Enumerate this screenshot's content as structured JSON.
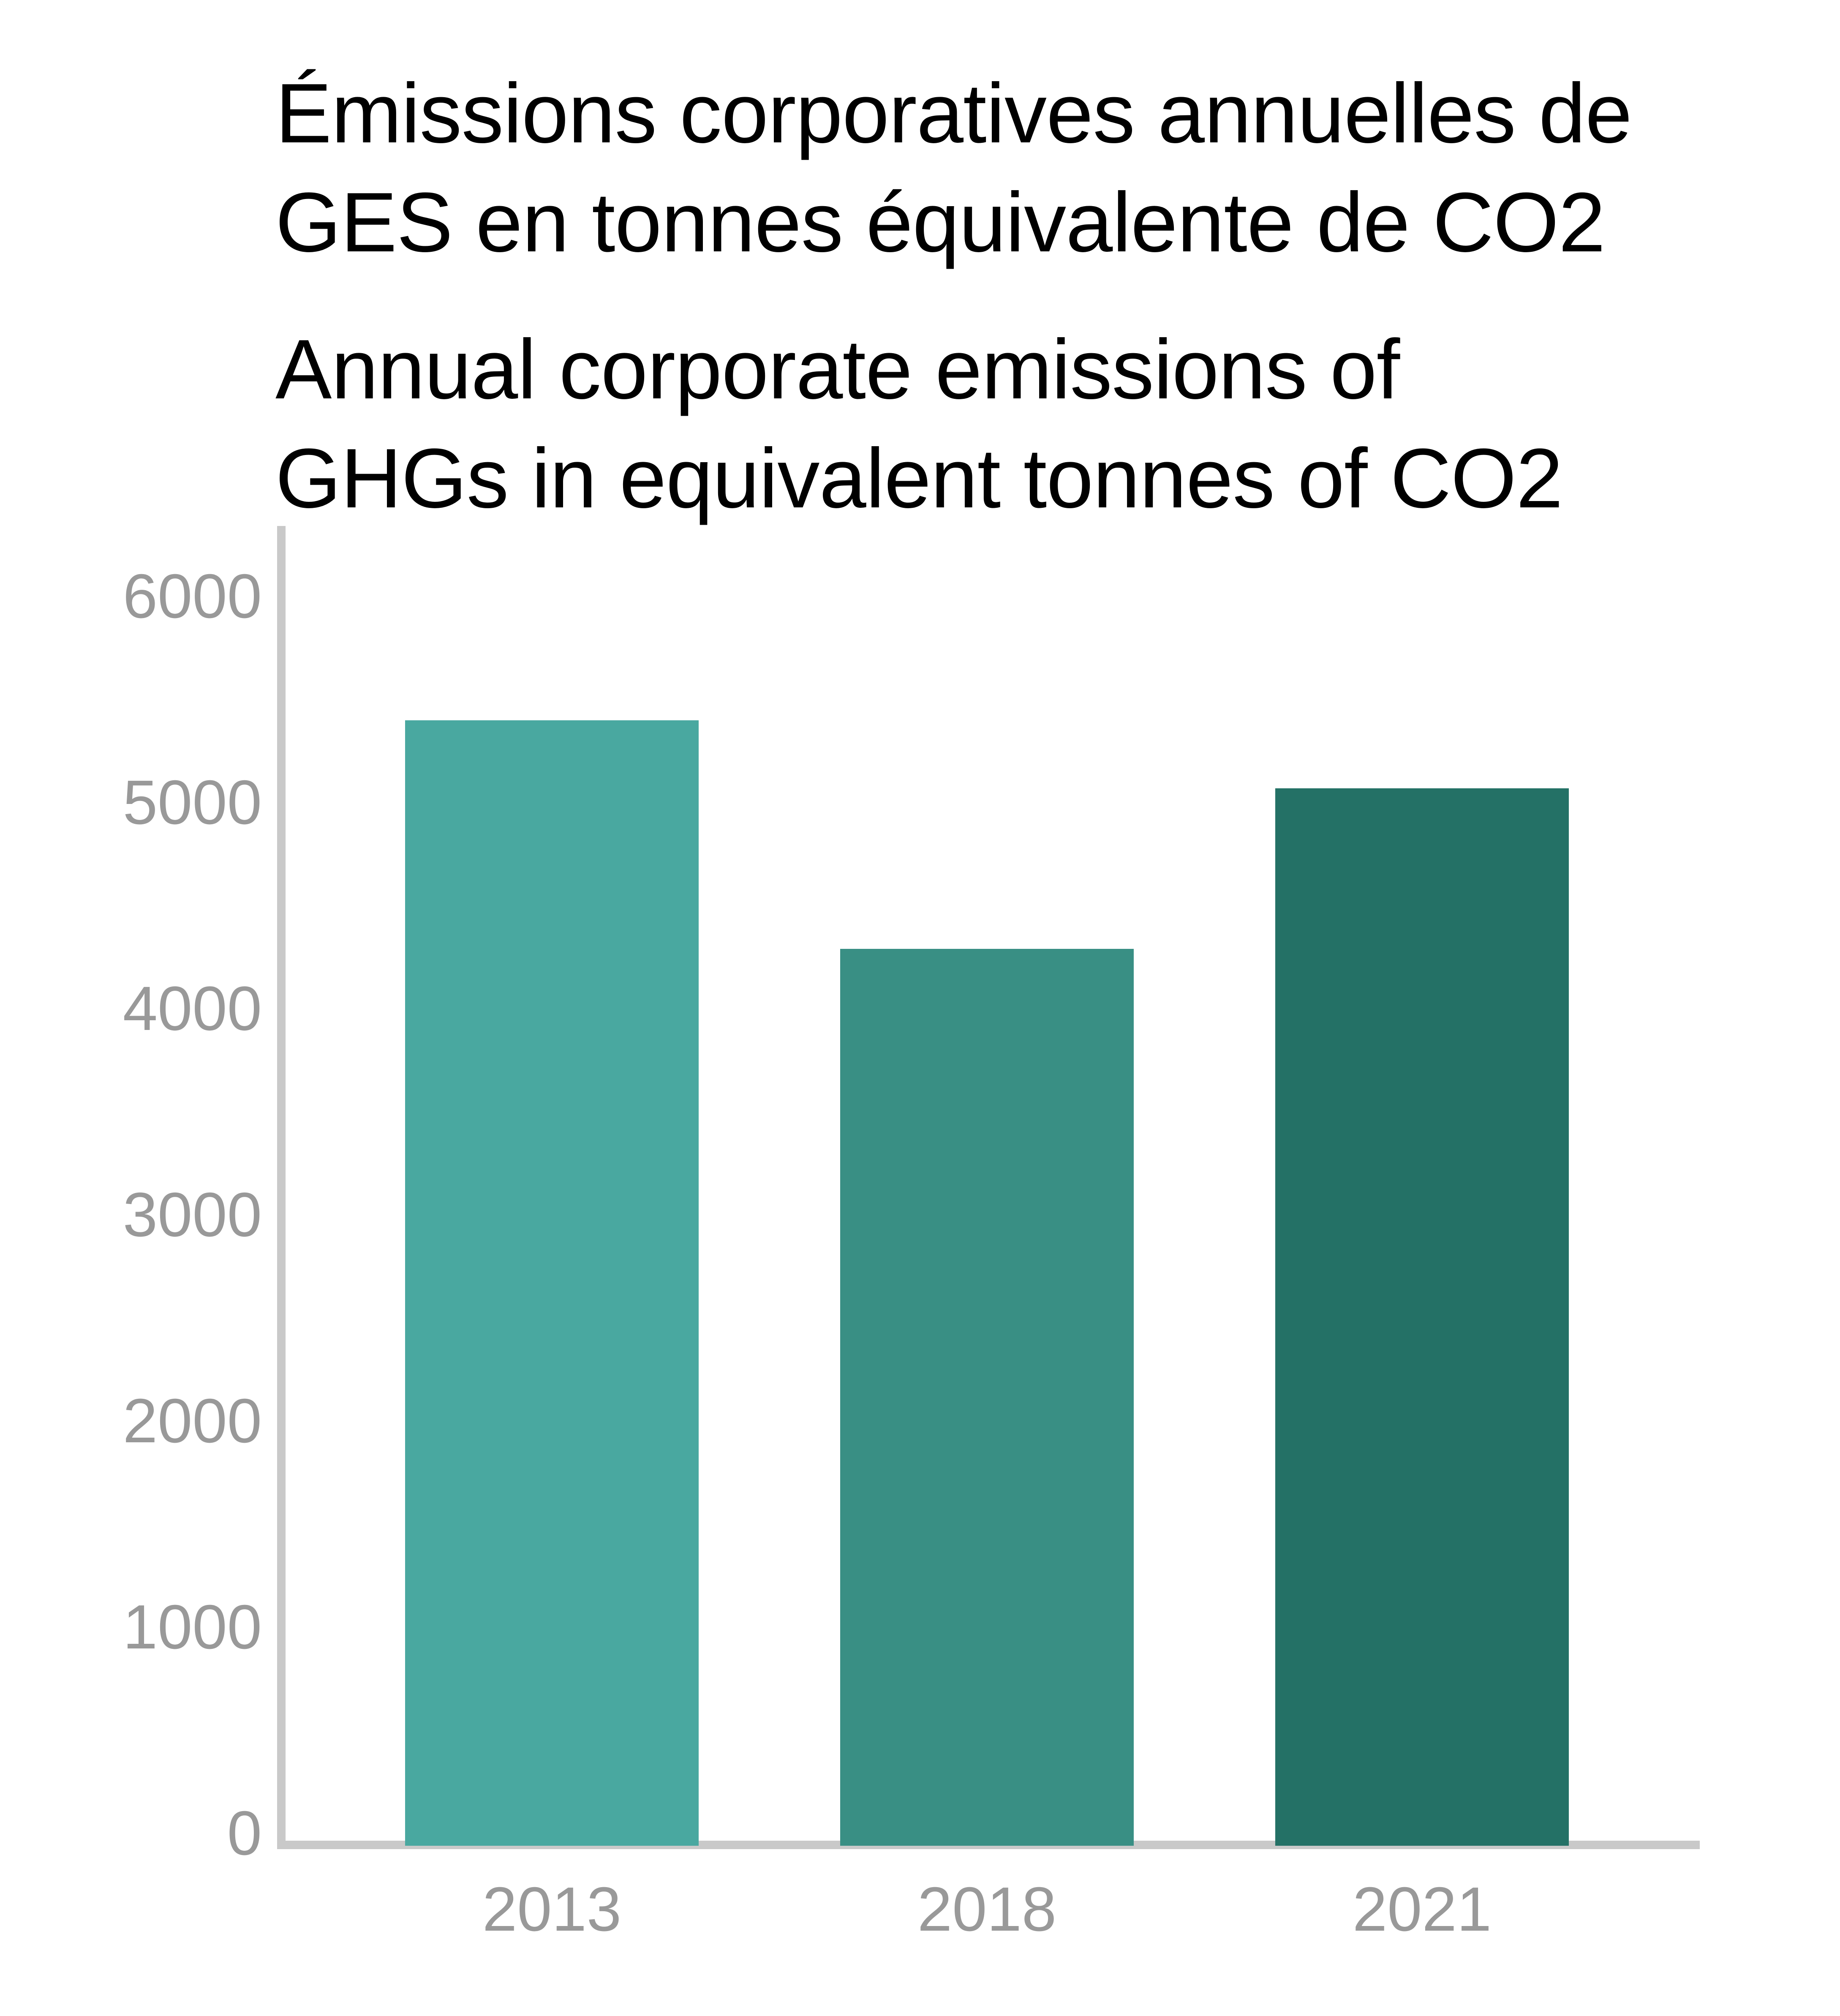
{
  "title_fr": {
    "line1": "Émissions corporatives annuelles de",
    "line2": "GES en tonnes équivalente de CO2"
  },
  "title_en": {
    "line1": "Annual corporate emissions of",
    "line2": "GHGs in equivalent tonnes of CO2"
  },
  "chart_data": {
    "type": "bar",
    "title": "Émissions corporatives annuelles de GES en tonnes équivalente de CO2 / Annual corporate emissions of GHGs in equivalent tonnes of CO2",
    "categories": [
      "2013",
      "2018",
      "2021"
    ],
    "values": [
      5400,
      4290,
      5070
    ],
    "bar_colors": [
      "#49A8A0",
      "#398F84",
      "#247166"
    ],
    "xlabel": "",
    "ylabel": "",
    "ylim": [
      0,
      6000
    ],
    "ytick_step": 1000,
    "yticks": [
      0,
      1000,
      2000,
      3000,
      4000,
      5000,
      6000
    ],
    "ytick_labels": [
      "0",
      "1000",
      "2000",
      "3000",
      "4000",
      "5000",
      "6000"
    ],
    "grid": false,
    "legend": "none",
    "axis_color": "#C9C9C9",
    "label_color": "#999999",
    "title_color": "#000000",
    "background_color": "#FFFFFF"
  }
}
